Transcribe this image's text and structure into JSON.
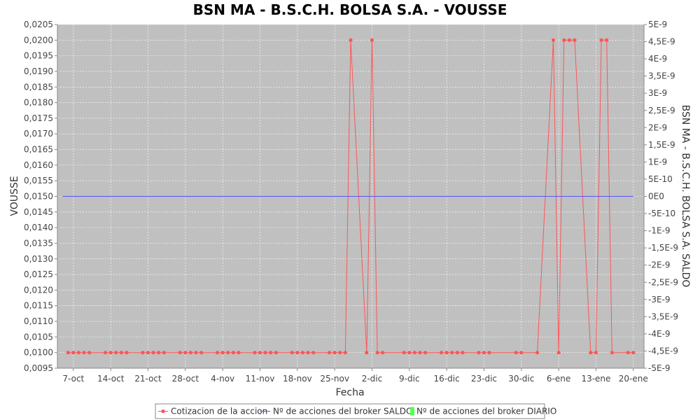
{
  "chart_data": {
    "type": "line",
    "title": "BSN MA - B.S.C.H. BOLSA S.A. - VOUSSE",
    "xlabel": "Fecha",
    "ylabel": "VOUSSE",
    "y2label": "BSN MA - B.S.C.H. BOLSA S.A. SALDO",
    "ylim": [
      0.0095,
      0.0205
    ],
    "y2lim": [
      -5e-09,
      5e-09
    ],
    "grid": true,
    "legend_position": "bottom",
    "colors": {
      "plot_background": "#c0c0c0",
      "grid": "#ffffff",
      "cotizacion": "#ff5555",
      "saldo": "#5555ff",
      "diario": "#55ff55"
    },
    "x_tick_labels": [
      "7-oct",
      "14-oct",
      "21-oct",
      "28-oct",
      "4-nov",
      "11-nov",
      "18-nov",
      "25-nov",
      "2-dic",
      "9-dic",
      "16-dic",
      "23-dic",
      "30-dic",
      "6-ene",
      "13-ene",
      "20-ene"
    ],
    "y_tick_labels": [
      "0,0095",
      "0,0100",
      "0,0105",
      "0,0110",
      "0,0115",
      "0,0120",
      "0,0125",
      "0,0130",
      "0,0135",
      "0,0140",
      "0,0145",
      "0,0150",
      "0,0155",
      "0,0160",
      "0,0165",
      "0,0170",
      "0,0175",
      "0,0180",
      "0,0185",
      "0,0190",
      "0,0195",
      "0,0200",
      "0,0205"
    ],
    "y2_tick_labels": [
      "-5E-9",
      "-4,5E-9",
      "-4E-9",
      "-3,5E-9",
      "-3E-9",
      "-2,5E-9",
      "-2E-9",
      "-1,5E-9",
      "-1E-9",
      "-5E-10",
      "0E0",
      "5E-10",
      "1E-9",
      "1,5E-9",
      "2E-9",
      "2,5E-9",
      "3E-9",
      "3,5E-9",
      "4E-9",
      "4,5E-9",
      "5E-9"
    ],
    "series": [
      {
        "name": "Cotizacion de la accion",
        "axis": "left",
        "x": [
          "6-oct",
          "7-oct",
          "8-oct",
          "9-oct",
          "10-oct",
          "13-oct",
          "14-oct",
          "15-oct",
          "16-oct",
          "17-oct",
          "20-oct",
          "21-oct",
          "22-oct",
          "23-oct",
          "24-oct",
          "27-oct",
          "28-oct",
          "29-oct",
          "30-oct",
          "31-oct",
          "3-nov",
          "4-nov",
          "5-nov",
          "6-nov",
          "7-nov",
          "10-nov",
          "11-nov",
          "12-nov",
          "13-nov",
          "14-nov",
          "17-nov",
          "18-nov",
          "19-nov",
          "20-nov",
          "21-nov",
          "24-nov",
          "25-nov",
          "26-nov",
          "27-nov",
          "28-nov",
          "1-dic",
          "2-dic",
          "3-dic",
          "4-dic",
          "8-dic",
          "9-dic",
          "10-dic",
          "11-dic",
          "12-dic",
          "15-dic",
          "16-dic",
          "17-dic",
          "18-dic",
          "19-dic",
          "22-dic",
          "23-dic",
          "24-dic",
          "29-dic",
          "30-dic",
          "2-ene",
          "5-ene",
          "6-ene",
          "7-ene",
          "8-ene",
          "9-ene",
          "12-ene",
          "13-ene",
          "14-ene",
          "15-ene",
          "16-ene",
          "19-ene",
          "20-ene"
        ],
        "values": [
          0.01,
          0.01,
          0.01,
          0.01,
          0.01,
          0.01,
          0.01,
          0.01,
          0.01,
          0.01,
          0.01,
          0.01,
          0.01,
          0.01,
          0.01,
          0.01,
          0.01,
          0.01,
          0.01,
          0.01,
          0.01,
          0.01,
          0.01,
          0.01,
          0.01,
          0.01,
          0.01,
          0.01,
          0.01,
          0.01,
          0.01,
          0.01,
          0.01,
          0.01,
          0.01,
          0.01,
          0.01,
          0.01,
          0.01,
          0.02,
          0.01,
          0.02,
          0.01,
          0.01,
          0.01,
          0.01,
          0.01,
          0.01,
          0.01,
          0.01,
          0.01,
          0.01,
          0.01,
          0.01,
          0.01,
          0.01,
          0.01,
          0.01,
          0.01,
          0.01,
          0.02,
          0.01,
          0.02,
          0.02,
          0.02,
          0.01,
          0.01,
          0.02,
          0.02,
          0.01,
          0.01,
          0.01
        ]
      },
      {
        "name": "Nº de acciones del broker SALDO",
        "axis": "right",
        "x": [
          "5-oct",
          "20-ene"
        ],
        "values": [
          0,
          0
        ]
      },
      {
        "name": "Nº de acciones del broker DIARIO",
        "axis": "right",
        "x": [],
        "values": []
      }
    ]
  }
}
